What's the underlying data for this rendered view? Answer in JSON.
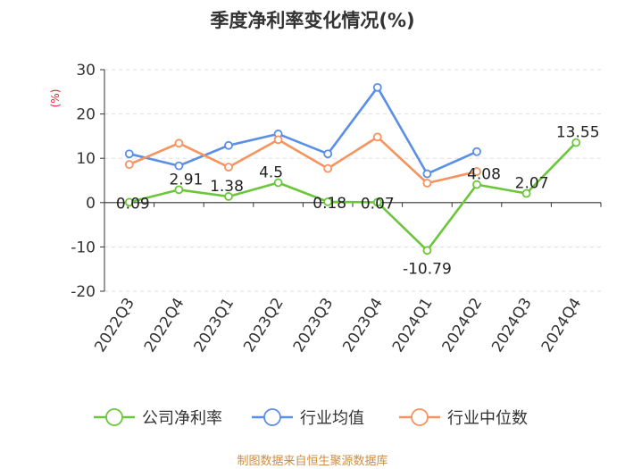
{
  "chart_data": {
    "type": "line",
    "title": "季度净利率变化情况(%)",
    "ylabel": "(%)",
    "ylim": [
      -20,
      30
    ],
    "yticks": [
      30,
      20,
      10,
      0,
      -10,
      -20
    ],
    "categories": [
      "2022Q3",
      "2022Q4",
      "2023Q1",
      "2023Q2",
      "2023Q3",
      "2023Q4",
      "2024Q1",
      "2024Q2",
      "2024Q3",
      "2024Q4"
    ],
    "grid": true,
    "legend": "bottom",
    "series": [
      {
        "name": "公司净利率",
        "color": "#6cc63b",
        "values": [
          0.09,
          2.91,
          1.38,
          4.5,
          0.18,
          0.07,
          -10.79,
          4.08,
          2.07,
          13.55
        ],
        "labels": [
          "0.09",
          "2.91",
          "1.38",
          "4.5",
          "0.18",
          "0.07",
          "-10.79",
          "4.08",
          "2.07",
          "13.55"
        ]
      },
      {
        "name": "行业均值",
        "color": "#5b8ee6",
        "values": [
          11.0,
          8.3,
          12.9,
          15.5,
          11.0,
          26.0,
          6.5,
          11.5,
          null,
          null
        ]
      },
      {
        "name": "行业中位数",
        "color": "#f6935e",
        "values": [
          8.6,
          13.4,
          8.0,
          14.2,
          7.7,
          14.8,
          4.4,
          7.0,
          null,
          null
        ]
      }
    ]
  },
  "footer": {
    "source": "制图数据来自恒生聚源数据库"
  }
}
